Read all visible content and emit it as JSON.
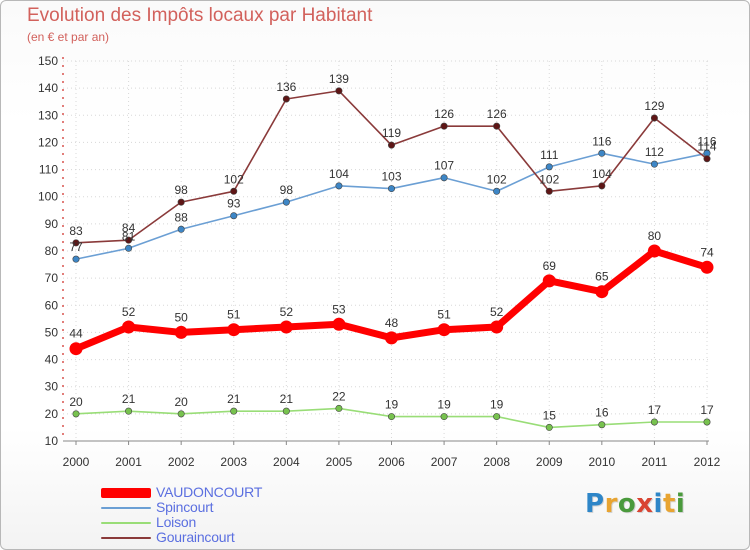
{
  "header": {
    "title": "Evolution des Impôts locaux par Habitant",
    "subtitle": "(en € et par an)"
  },
  "logo": {
    "text": "Proxiti",
    "letter_colors": [
      "#2e86c8",
      "#e8a431",
      "#4a9a3c",
      "#d94432",
      "#2e86c8",
      "#e8a431",
      "#4a9a3c"
    ]
  },
  "chart_data": {
    "type": "line",
    "title": "Evolution des Impôts locaux par Habitant",
    "subtitle": "(en € et par an)",
    "xlabel": "",
    "ylabel": "",
    "ylim": [
      10,
      150
    ],
    "ytick_step": 10,
    "grid": true,
    "legend_position": "bottom-left",
    "categories": [
      "2000",
      "2001",
      "2002",
      "2003",
      "2004",
      "2005",
      "2006",
      "2007",
      "2008",
      "2009",
      "2010",
      "2011",
      "2012"
    ],
    "series": [
      {
        "name": "VAUDONCOURT",
        "color": "#ff0000",
        "marker_color": "#ff0000",
        "emphasis": "thick",
        "values": [
          44,
          52,
          50,
          51,
          52,
          53,
          48,
          51,
          52,
          69,
          65,
          80,
          74
        ],
        "labels": [
          "44",
          "52",
          "50",
          "51",
          "52",
          "53",
          "48",
          "51",
          "52",
          "69",
          "65",
          "80",
          "74"
        ]
      },
      {
        "name": "Spincourt",
        "color": "#6b9fd4",
        "marker_color": "#3d86c6",
        "emphasis": "thin",
        "values": [
          77,
          81,
          88,
          93,
          98,
          104,
          103,
          107,
          102,
          111,
          116,
          112,
          116
        ],
        "labels": [
          "77",
          "81",
          "88",
          "93",
          "98",
          "104",
          "103",
          "107",
          "102",
          "111",
          "116",
          "112",
          "116"
        ]
      },
      {
        "name": "Loison",
        "color": "#99dd77",
        "marker_color": "#77c24e",
        "emphasis": "thin",
        "values": [
          20,
          21,
          20,
          21,
          21,
          22,
          19,
          19,
          19,
          15,
          16,
          17,
          17
        ],
        "labels": [
          "20",
          "21",
          "20",
          "21",
          "21",
          "22",
          "19",
          "19",
          "19",
          "15",
          "16",
          "17",
          "17"
        ]
      },
      {
        "name": "Gouraincourt",
        "color": "#8a3a3a",
        "marker_color": "#5e1616",
        "emphasis": "thin",
        "values": [
          83,
          84,
          98,
          102,
          136,
          139,
          119,
          126,
          126,
          102,
          104,
          129,
          114
        ],
        "labels": [
          "83",
          "84",
          "98",
          "102",
          "136",
          "139",
          "119",
          "126",
          "126",
          "102",
          "104",
          "129",
          "114"
        ]
      }
    ]
  }
}
